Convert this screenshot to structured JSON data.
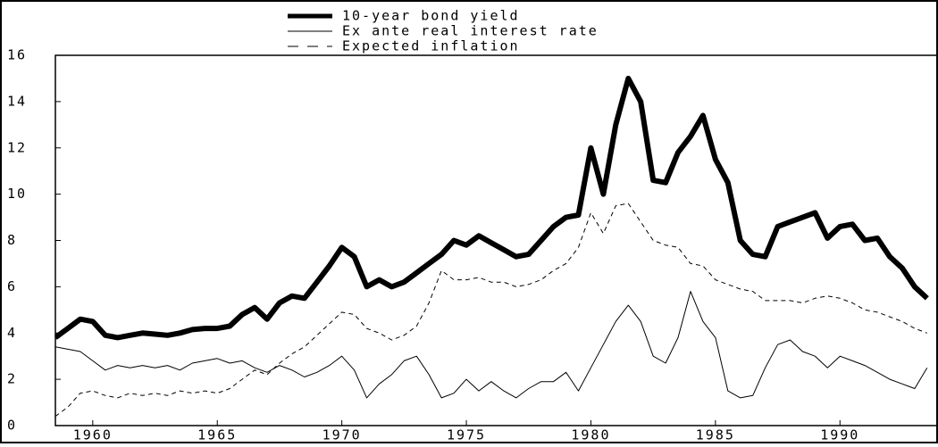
{
  "chart_data": {
    "type": "line",
    "x": [
      1958.5,
      1959,
      1959.5,
      1960,
      1960.5,
      1961,
      1961.5,
      1962,
      1962.5,
      1963,
      1963.5,
      1964,
      1964.5,
      1965,
      1965.5,
      1966,
      1966.5,
      1967,
      1967.5,
      1968,
      1968.5,
      1969,
      1969.5,
      1970,
      1970.5,
      1971,
      1971.5,
      1972,
      1972.5,
      1973,
      1973.5,
      1974,
      1974.5,
      1975,
      1975.5,
      1976,
      1976.5,
      1977,
      1977.5,
      1978,
      1978.5,
      1979,
      1979.5,
      1980,
      1980.5,
      1981,
      1981.5,
      1982,
      1982.5,
      1983,
      1983.5,
      1984,
      1984.5,
      1985,
      1985.5,
      1986,
      1986.5,
      1987,
      1987.5,
      1988,
      1988.5,
      1989,
      1989.5,
      1990,
      1990.5,
      1991,
      1991.5,
      1992,
      1992.5,
      1993,
      1993.5
    ],
    "series": [
      {
        "name": "10-year bond yield",
        "color": "#000000",
        "linestyle": "solid",
        "linewidth": 6,
        "values": [
          3.8,
          4.2,
          4.6,
          4.5,
          3.9,
          3.8,
          3.9,
          4.0,
          3.95,
          3.9,
          4.0,
          4.15,
          4.2,
          4.2,
          4.3,
          4.8,
          5.1,
          4.6,
          5.3,
          5.6,
          5.5,
          6.2,
          6.9,
          7.7,
          7.3,
          6.0,
          6.3,
          6.0,
          6.2,
          6.6,
          7.0,
          7.4,
          8.0,
          7.8,
          8.2,
          7.9,
          7.6,
          7.3,
          7.4,
          8.0,
          8.6,
          9.0,
          9.1,
          12.0,
          10.0,
          13.0,
          15.0,
          14.0,
          10.6,
          10.5,
          11.8,
          12.5,
          13.4,
          11.5,
          10.5,
          8.0,
          7.4,
          7.3,
          8.6,
          8.8,
          9.0,
          9.2,
          8.1,
          8.6,
          8.7,
          8.0,
          8.1,
          7.3,
          6.8,
          6.0,
          5.5
        ]
      },
      {
        "name": "Ex ante real interest rate",
        "color": "#000000",
        "linestyle": "solid",
        "linewidth": 1,
        "values": [
          3.4,
          3.3,
          3.2,
          2.8,
          2.4,
          2.6,
          2.5,
          2.6,
          2.5,
          2.6,
          2.4,
          2.7,
          2.8,
          2.9,
          2.7,
          2.8,
          2.5,
          2.3,
          2.6,
          2.4,
          2.1,
          2.3,
          2.6,
          3.0,
          2.4,
          1.2,
          1.8,
          2.2,
          2.8,
          3.0,
          2.2,
          1.2,
          1.4,
          2.0,
          1.5,
          1.9,
          1.5,
          1.2,
          1.6,
          1.9,
          1.9,
          2.3,
          1.5,
          2.5,
          3.5,
          4.5,
          5.2,
          4.5,
          3.0,
          2.7,
          3.8,
          5.8,
          4.5,
          3.8,
          1.5,
          1.2,
          1.3,
          2.5,
          3.5,
          3.7,
          3.2,
          3.0,
          2.5,
          3.0,
          2.8,
          2.6,
          2.3,
          2.0,
          1.8,
          1.6,
          2.5
        ]
      },
      {
        "name": "Expected inflation",
        "color": "#000000",
        "linestyle": "dashed",
        "linewidth": 1,
        "values": [
          0.4,
          0.8,
          1.4,
          1.5,
          1.3,
          1.2,
          1.4,
          1.3,
          1.4,
          1.3,
          1.5,
          1.4,
          1.5,
          1.4,
          1.6,
          2.0,
          2.4,
          2.2,
          2.7,
          3.1,
          3.4,
          3.9,
          4.4,
          4.9,
          4.8,
          4.2,
          4.0,
          3.7,
          3.9,
          4.3,
          5.3,
          6.7,
          6.3,
          6.3,
          6.4,
          6.2,
          6.2,
          6.0,
          6.1,
          6.3,
          6.7,
          7.0,
          7.7,
          9.2,
          8.3,
          9.5,
          9.6,
          8.8,
          8.0,
          7.8,
          7.7,
          7.0,
          6.9,
          6.3,
          6.1,
          5.9,
          5.8,
          5.4,
          5.4,
          5.4,
          5.3,
          5.5,
          5.6,
          5.5,
          5.3,
          5.0,
          4.9,
          4.7,
          4.5,
          4.2,
          4.0
        ]
      }
    ],
    "xlim": [
      1958.5,
      1993.9
    ],
    "xticks": [
      1960,
      1965,
      1970,
      1975,
      1980,
      1985,
      1990
    ],
    "ylim": [
      0,
      16
    ],
    "yticks": [
      0,
      2,
      4,
      6,
      8,
      10,
      12,
      14,
      16
    ]
  }
}
